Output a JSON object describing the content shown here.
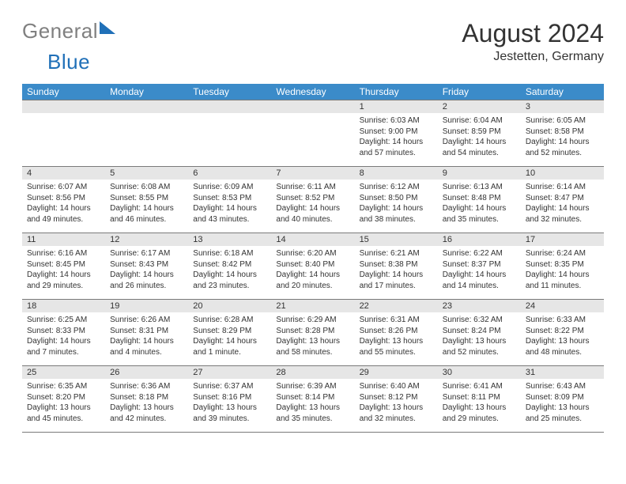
{
  "logo": {
    "gray": "General",
    "blue": "Blue"
  },
  "title": {
    "monthYear": "August 2024",
    "location": "Jestetten, Germany"
  },
  "colors": {
    "header_bg": "#3b8bc9",
    "header_text": "#ffffff",
    "daynum_bg": "#e6e6e6",
    "border": "#7a7a7a",
    "logo_gray": "#808080",
    "logo_blue": "#2070b8"
  },
  "weekdays": [
    "Sunday",
    "Monday",
    "Tuesday",
    "Wednesday",
    "Thursday",
    "Friday",
    "Saturday"
  ],
  "grid": [
    [
      null,
      null,
      null,
      null,
      {
        "n": "1",
        "sr": "6:03 AM",
        "ss": "9:00 PM",
        "dl": "14 hours and 57 minutes."
      },
      {
        "n": "2",
        "sr": "6:04 AM",
        "ss": "8:59 PM",
        "dl": "14 hours and 54 minutes."
      },
      {
        "n": "3",
        "sr": "6:05 AM",
        "ss": "8:58 PM",
        "dl": "14 hours and 52 minutes."
      }
    ],
    [
      {
        "n": "4",
        "sr": "6:07 AM",
        "ss": "8:56 PM",
        "dl": "14 hours and 49 minutes."
      },
      {
        "n": "5",
        "sr": "6:08 AM",
        "ss": "8:55 PM",
        "dl": "14 hours and 46 minutes."
      },
      {
        "n": "6",
        "sr": "6:09 AM",
        "ss": "8:53 PM",
        "dl": "14 hours and 43 minutes."
      },
      {
        "n": "7",
        "sr": "6:11 AM",
        "ss": "8:52 PM",
        "dl": "14 hours and 40 minutes."
      },
      {
        "n": "8",
        "sr": "6:12 AM",
        "ss": "8:50 PM",
        "dl": "14 hours and 38 minutes."
      },
      {
        "n": "9",
        "sr": "6:13 AM",
        "ss": "8:48 PM",
        "dl": "14 hours and 35 minutes."
      },
      {
        "n": "10",
        "sr": "6:14 AM",
        "ss": "8:47 PM",
        "dl": "14 hours and 32 minutes."
      }
    ],
    [
      {
        "n": "11",
        "sr": "6:16 AM",
        "ss": "8:45 PM",
        "dl": "14 hours and 29 minutes."
      },
      {
        "n": "12",
        "sr": "6:17 AM",
        "ss": "8:43 PM",
        "dl": "14 hours and 26 minutes."
      },
      {
        "n": "13",
        "sr": "6:18 AM",
        "ss": "8:42 PM",
        "dl": "14 hours and 23 minutes."
      },
      {
        "n": "14",
        "sr": "6:20 AM",
        "ss": "8:40 PM",
        "dl": "14 hours and 20 minutes."
      },
      {
        "n": "15",
        "sr": "6:21 AM",
        "ss": "8:38 PM",
        "dl": "14 hours and 17 minutes."
      },
      {
        "n": "16",
        "sr": "6:22 AM",
        "ss": "8:37 PM",
        "dl": "14 hours and 14 minutes."
      },
      {
        "n": "17",
        "sr": "6:24 AM",
        "ss": "8:35 PM",
        "dl": "14 hours and 11 minutes."
      }
    ],
    [
      {
        "n": "18",
        "sr": "6:25 AM",
        "ss": "8:33 PM",
        "dl": "14 hours and 7 minutes."
      },
      {
        "n": "19",
        "sr": "6:26 AM",
        "ss": "8:31 PM",
        "dl": "14 hours and 4 minutes."
      },
      {
        "n": "20",
        "sr": "6:28 AM",
        "ss": "8:29 PM",
        "dl": "14 hours and 1 minute."
      },
      {
        "n": "21",
        "sr": "6:29 AM",
        "ss": "8:28 PM",
        "dl": "13 hours and 58 minutes."
      },
      {
        "n": "22",
        "sr": "6:31 AM",
        "ss": "8:26 PM",
        "dl": "13 hours and 55 minutes."
      },
      {
        "n": "23",
        "sr": "6:32 AM",
        "ss": "8:24 PM",
        "dl": "13 hours and 52 minutes."
      },
      {
        "n": "24",
        "sr": "6:33 AM",
        "ss": "8:22 PM",
        "dl": "13 hours and 48 minutes."
      }
    ],
    [
      {
        "n": "25",
        "sr": "6:35 AM",
        "ss": "8:20 PM",
        "dl": "13 hours and 45 minutes."
      },
      {
        "n": "26",
        "sr": "6:36 AM",
        "ss": "8:18 PM",
        "dl": "13 hours and 42 minutes."
      },
      {
        "n": "27",
        "sr": "6:37 AM",
        "ss": "8:16 PM",
        "dl": "13 hours and 39 minutes."
      },
      {
        "n": "28",
        "sr": "6:39 AM",
        "ss": "8:14 PM",
        "dl": "13 hours and 35 minutes."
      },
      {
        "n": "29",
        "sr": "6:40 AM",
        "ss": "8:12 PM",
        "dl": "13 hours and 32 minutes."
      },
      {
        "n": "30",
        "sr": "6:41 AM",
        "ss": "8:11 PM",
        "dl": "13 hours and 29 minutes."
      },
      {
        "n": "31",
        "sr": "6:43 AM",
        "ss": "8:09 PM",
        "dl": "13 hours and 25 minutes."
      }
    ]
  ],
  "labels": {
    "sunrise": "Sunrise: ",
    "sunset": "Sunset: ",
    "daylight": "Daylight: "
  }
}
